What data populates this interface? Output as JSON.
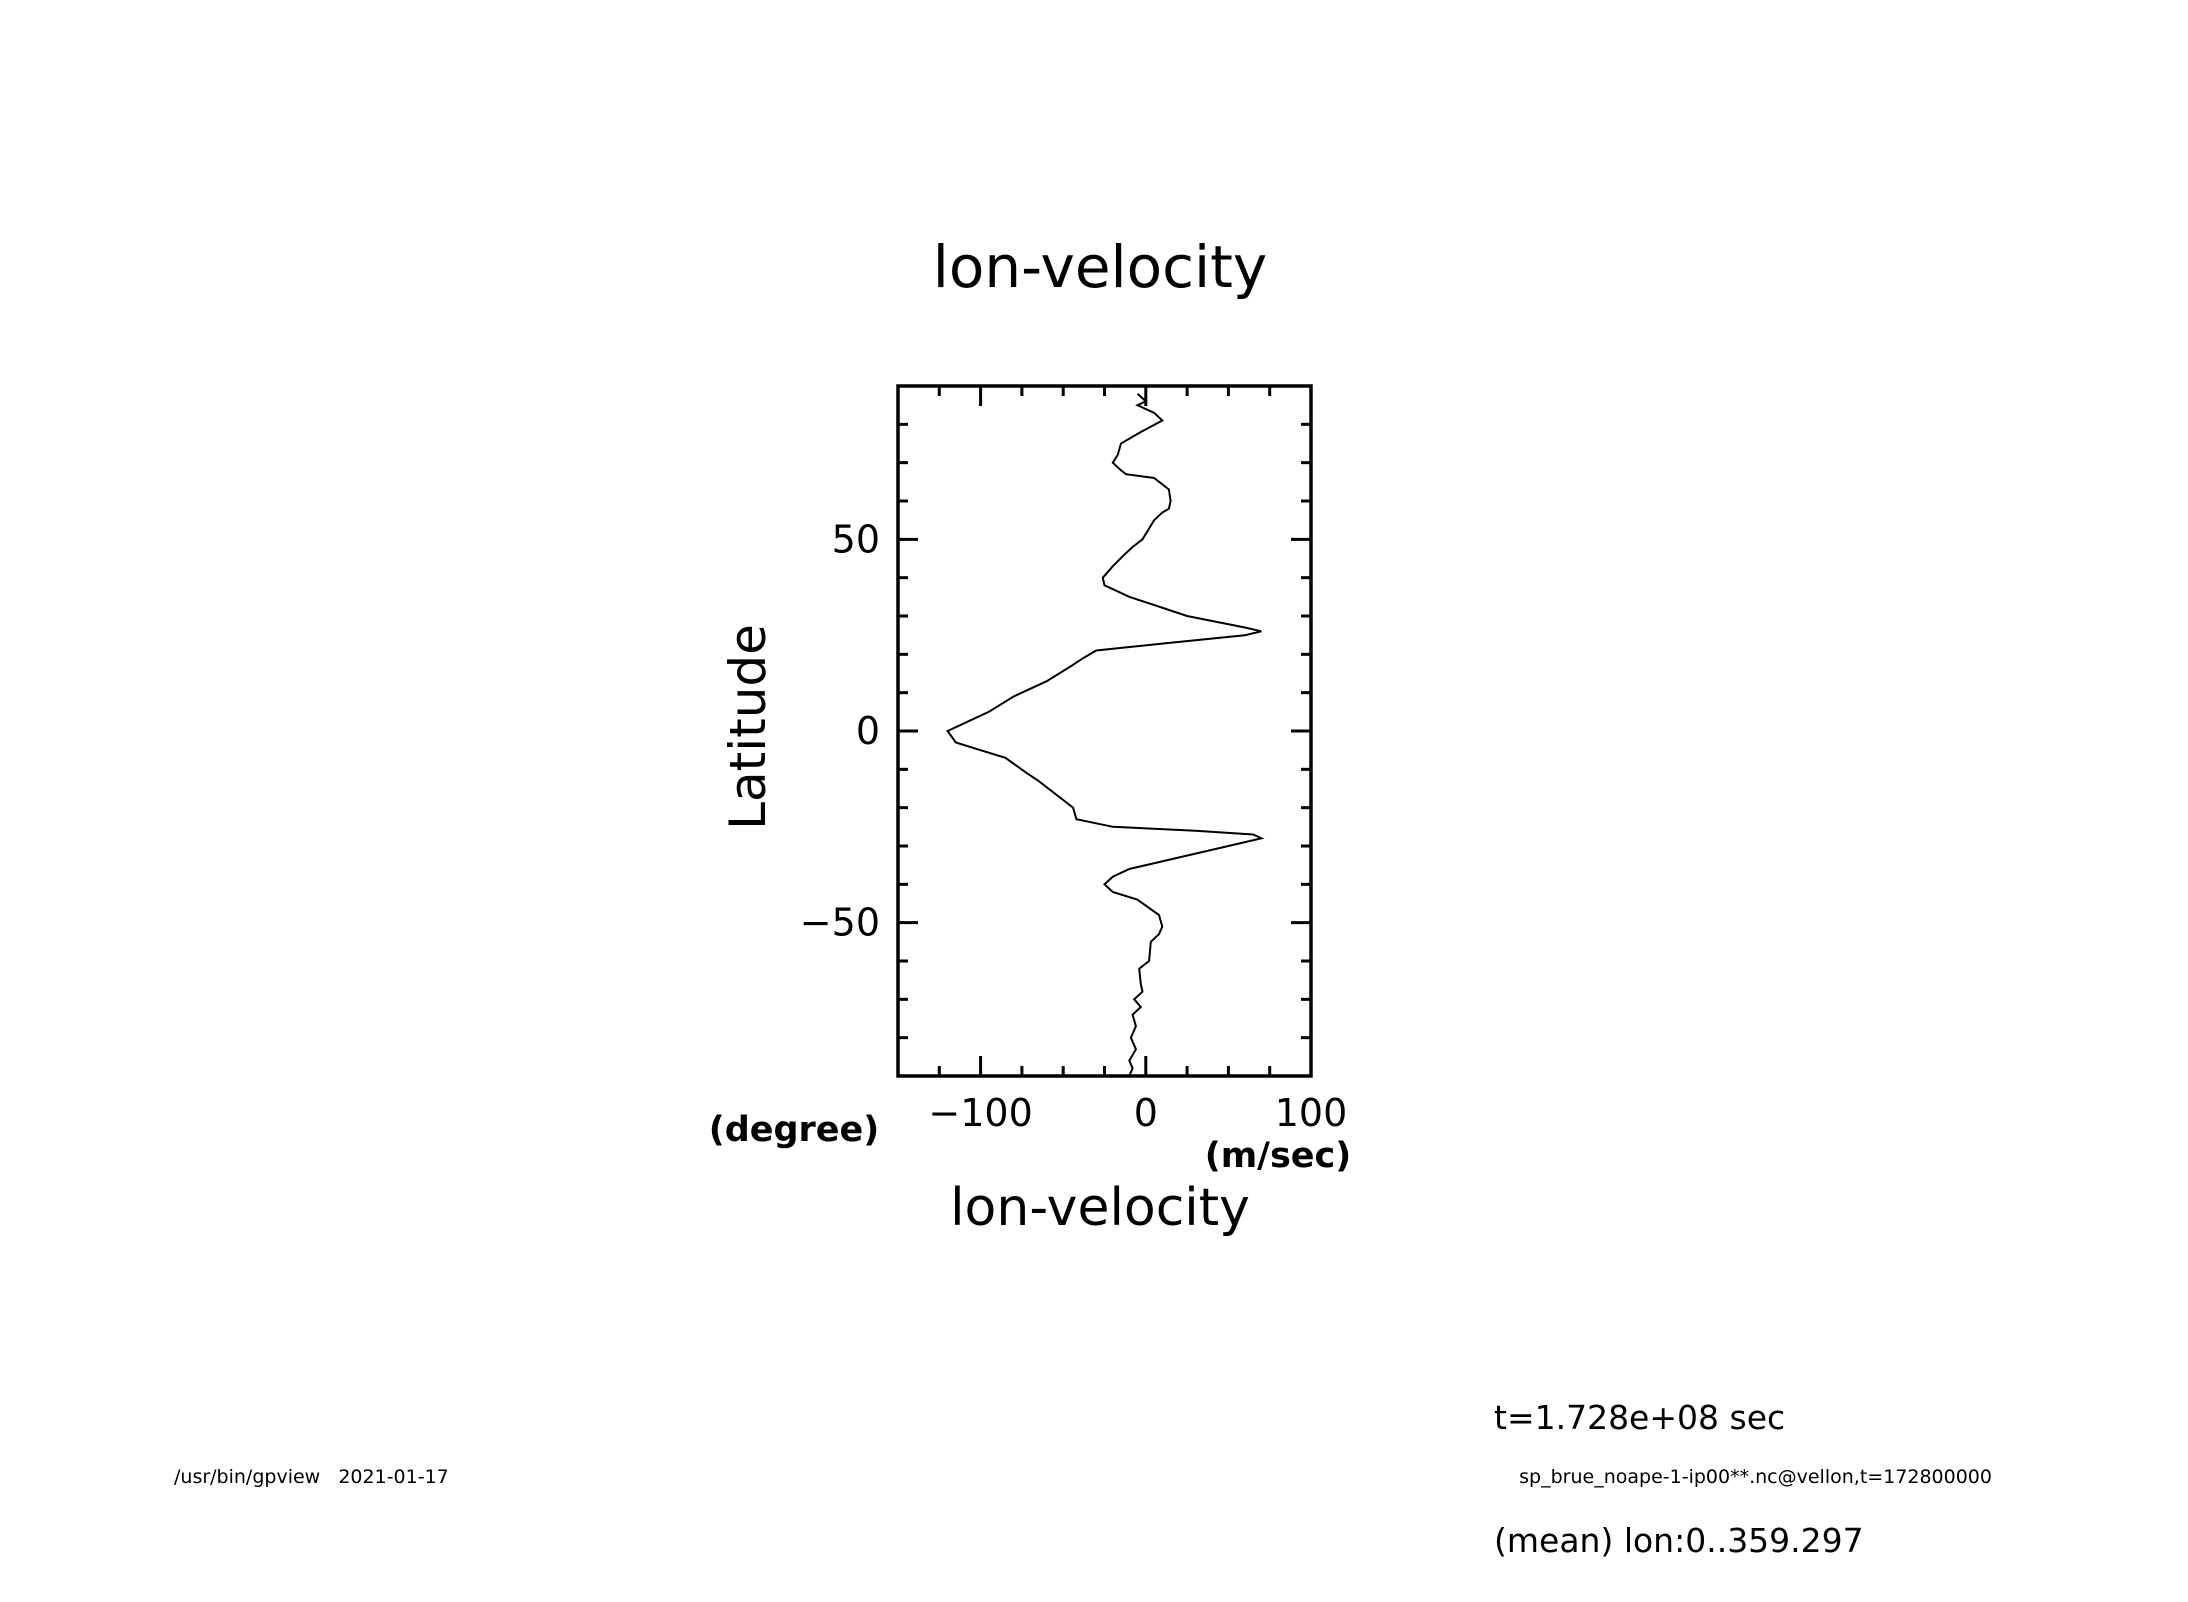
{
  "footer": {
    "program": "/usr/bin/gpview",
    "date": "2021-01-17",
    "source": "sp_brue_noape-1-ip00**.nc@vellon,t=172800000"
  },
  "info": {
    "time": "t=1.728e+08 sec",
    "mean": "(mean) lon:0..359.297"
  },
  "chart_data": {
    "type": "line",
    "title": "lon-velocity",
    "xlabel": "lon-velocity",
    "xunit": "(m/sec)",
    "ylabel": "Latitude",
    "yunit": "(degree)",
    "xlim": [
      -150,
      100
    ],
    "ylim": [
      -90,
      90
    ],
    "xticks": [
      -100,
      0,
      100
    ],
    "xtick_labels": [
      "−100",
      "0",
      "100"
    ],
    "yticks": [
      -50,
      0,
      50
    ],
    "ytick_labels": [
      "−50",
      "0",
      "50"
    ],
    "x_minor_step": 25,
    "y_minor_step": 10,
    "grid": false,
    "series": [
      {
        "points": [
          [
            -5,
            88
          ],
          [
            0,
            86
          ],
          [
            -5,
            85
          ],
          [
            5,
            83
          ],
          [
            10,
            81
          ],
          [
            -3,
            78
          ],
          [
            -15,
            75
          ],
          [
            -17,
            72
          ],
          [
            -20,
            70
          ],
          [
            -15,
            68
          ],
          [
            -12,
            67
          ],
          [
            5,
            66
          ],
          [
            14,
            63
          ],
          [
            15,
            60
          ],
          [
            14,
            58
          ],
          [
            10,
            57
          ],
          [
            5,
            55
          ],
          [
            -2,
            50
          ],
          [
            -8,
            48
          ],
          [
            -13,
            46
          ],
          [
            -20,
            43
          ],
          [
            -26,
            40
          ],
          [
            -25,
            38
          ],
          [
            -10,
            35
          ],
          [
            25,
            30
          ],
          [
            60,
            27
          ],
          [
            70,
            26
          ],
          [
            60,
            25
          ],
          [
            15,
            23
          ],
          [
            -30,
            21
          ],
          [
            -38,
            19
          ],
          [
            -45,
            17
          ],
          [
            -60,
            13
          ],
          [
            -80,
            9
          ],
          [
            -95,
            5
          ],
          [
            -110,
            2
          ],
          [
            -120,
            0
          ],
          [
            -115,
            -3
          ],
          [
            -100,
            -5
          ],
          [
            -85,
            -7
          ],
          [
            -72,
            -11
          ],
          [
            -65,
            -13
          ],
          [
            -50,
            -18
          ],
          [
            -44,
            -20
          ],
          [
            -42,
            -23
          ],
          [
            -20,
            -25
          ],
          [
            30,
            -26
          ],
          [
            65,
            -27
          ],
          [
            70,
            -28
          ],
          [
            50,
            -30
          ],
          [
            20,
            -33
          ],
          [
            -10,
            -36
          ],
          [
            -20,
            -38
          ],
          [
            -25,
            -40
          ],
          [
            -20,
            -42
          ],
          [
            -5,
            -44
          ],
          [
            8,
            -48
          ],
          [
            10,
            -51
          ],
          [
            8,
            -53
          ],
          [
            3,
            -55
          ],
          [
            2,
            -60
          ],
          [
            -4,
            -62
          ],
          [
            -3,
            -66
          ],
          [
            -2,
            -68
          ],
          [
            -7,
            -70
          ],
          [
            -3,
            -72
          ],
          [
            -8,
            -74
          ],
          [
            -6,
            -77
          ],
          [
            -9,
            -80
          ],
          [
            -6,
            -83
          ],
          [
            -10,
            -86
          ],
          [
            -8,
            -88
          ],
          [
            -10,
            -90
          ]
        ]
      }
    ]
  }
}
